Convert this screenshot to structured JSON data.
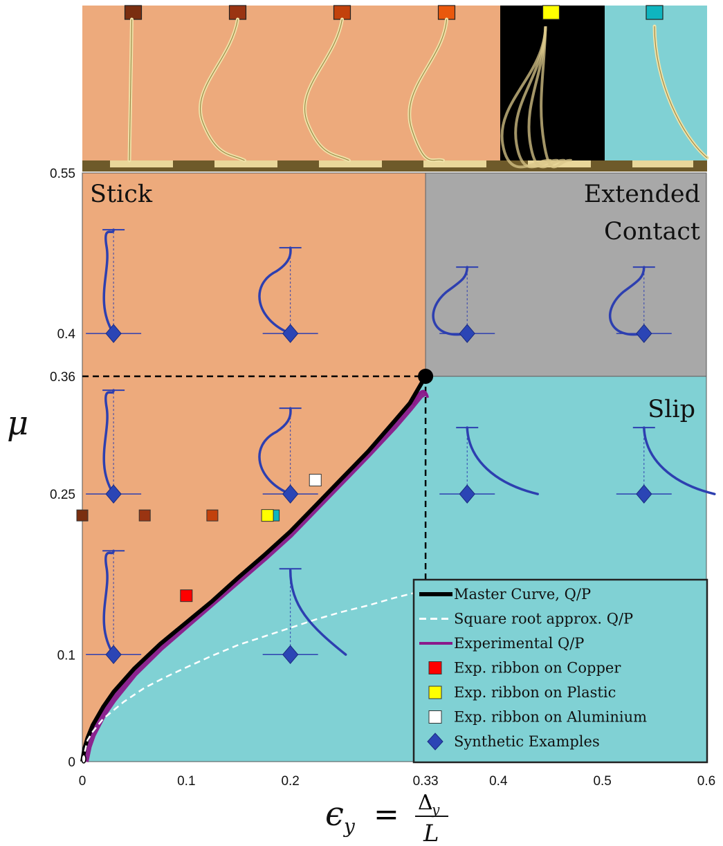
{
  "colors": {
    "stick": "#EDAA7C",
    "slip": "#80D1D4",
    "extended": "#A8A8A8",
    "strip_black": "#000000",
    "master": "#000000",
    "experimental": "#8B1A8B",
    "sqrt": "#FFFFFF",
    "ribbon_stroke": "#2D3FB0",
    "diamond": "#2B45B5"
  },
  "chart_data": {
    "type": "line",
    "xlim": [
      0,
      0.6
    ],
    "ylim": [
      0,
      0.55
    ],
    "x_ticks": [
      "0",
      "0.1",
      "0.2",
      "0.33",
      "0.4",
      "0.5",
      "0.6"
    ],
    "x_tick_values": [
      0,
      0.1,
      0.2,
      0.33,
      0.4,
      0.5,
      0.6
    ],
    "y_ticks": [
      "0",
      "0.1",
      "0.25",
      "0.36",
      "0.4",
      "0.55"
    ],
    "y_tick_values": [
      0,
      0.1,
      0.25,
      0.36,
      0.4,
      0.55
    ],
    "xlabel_lhs": "ϵ",
    "xlabel_sub": "y",
    "xlabel_eq": "=",
    "xlabel_num": "Δ",
    "xlabel_num_sub": "y",
    "xlabel_den": "L",
    "ylabel": "μ",
    "regions": [
      {
        "name": "Stick",
        "label_lines": [
          "Stick"
        ],
        "color_key": "stick"
      },
      {
        "name": "Extended Contact",
        "label_lines": [
          "Extended",
          "Contact"
        ],
        "color_key": "extended"
      },
      {
        "name": "Slip",
        "label_lines": [
          "Slip"
        ],
        "color_key": "slip"
      }
    ],
    "critical_point": {
      "x": 0.33,
      "y": 0.36
    },
    "series": [
      {
        "name": "Master Curve, Q/P",
        "style": "solid-thick",
        "color_key": "master",
        "points": [
          [
            0,
            0
          ],
          [
            0.002,
            0.012
          ],
          [
            0.005,
            0.022
          ],
          [
            0.01,
            0.034
          ],
          [
            0.02,
            0.051
          ],
          [
            0.03,
            0.065
          ],
          [
            0.05,
            0.087
          ],
          [
            0.075,
            0.11
          ],
          [
            0.1,
            0.13
          ],
          [
            0.125,
            0.15
          ],
          [
            0.15,
            0.172
          ],
          [
            0.175,
            0.193
          ],
          [
            0.2,
            0.215
          ],
          [
            0.225,
            0.24
          ],
          [
            0.25,
            0.265
          ],
          [
            0.275,
            0.29
          ],
          [
            0.3,
            0.318
          ],
          [
            0.315,
            0.335
          ],
          [
            0.33,
            0.36
          ]
        ]
      },
      {
        "name": "Square root approx. Q/P",
        "style": "dashed",
        "color_key": "sqrt",
        "points": [
          [
            0,
            0
          ],
          [
            0.005,
            0.02
          ],
          [
            0.01,
            0.028
          ],
          [
            0.02,
            0.04
          ],
          [
            0.04,
            0.056
          ],
          [
            0.06,
            0.069
          ],
          [
            0.08,
            0.079
          ],
          [
            0.1,
            0.088
          ],
          [
            0.125,
            0.099
          ],
          [
            0.15,
            0.109
          ],
          [
            0.175,
            0.117
          ],
          [
            0.2,
            0.125
          ],
          [
            0.225,
            0.133
          ],
          [
            0.25,
            0.14
          ],
          [
            0.275,
            0.146
          ],
          [
            0.3,
            0.153
          ],
          [
            0.325,
            0.159
          ],
          [
            0.33,
            0.16
          ]
        ]
      },
      {
        "name": "Experimental Q/P",
        "style": "solid",
        "color_key": "experimental",
        "points": [
          [
            0.003,
            0
          ],
          [
            0.006,
            0.014
          ],
          [
            0.01,
            0.025
          ],
          [
            0.02,
            0.044
          ],
          [
            0.03,
            0.058
          ],
          [
            0.05,
            0.082
          ],
          [
            0.075,
            0.106
          ],
          [
            0.1,
            0.127
          ],
          [
            0.125,
            0.148
          ],
          [
            0.15,
            0.169
          ],
          [
            0.175,
            0.19
          ],
          [
            0.2,
            0.212
          ],
          [
            0.225,
            0.237
          ],
          [
            0.25,
            0.262
          ],
          [
            0.275,
            0.287
          ],
          [
            0.3,
            0.313
          ],
          [
            0.315,
            0.33
          ],
          [
            0.325,
            0.342
          ],
          [
            0.33,
            0.345
          ]
        ]
      }
    ],
    "experimental_markers": [
      {
        "name": "Exp. ribbon on Copper",
        "x": 0.1,
        "y": 0.155,
        "color": "#FF0000"
      },
      {
        "name": "Exp. ribbon on Plastic",
        "x": 0.178,
        "y": 0.23,
        "color": "#FFFF00"
      },
      {
        "name": "Exp. ribbon on Aluminium",
        "x": 0.224,
        "y": 0.263,
        "color": "#FFFFFF"
      }
    ],
    "row_markers": [
      {
        "x": 0,
        "y": 0.23,
        "color": "#7A2E10"
      },
      {
        "x": 0.06,
        "y": 0.23,
        "color": "#9A3412"
      },
      {
        "x": 0.125,
        "y": 0.23,
        "color": "#C2410C"
      },
      {
        "x": 0.184,
        "y": 0.23,
        "color": "#0FB5BF"
      }
    ],
    "synthetic_examples": [
      {
        "x": 0.03,
        "y": 0.4,
        "shape": "stick-s"
      },
      {
        "x": 0.2,
        "y": 0.4,
        "shape": "stick-c"
      },
      {
        "x": 0.37,
        "y": 0.4,
        "shape": "ext-loop"
      },
      {
        "x": 0.54,
        "y": 0.4,
        "shape": "ext-loop"
      },
      {
        "x": 0.03,
        "y": 0.25,
        "shape": "stick-s"
      },
      {
        "x": 0.2,
        "y": 0.25,
        "shape": "stick-c"
      },
      {
        "x": 0.37,
        "y": 0.25,
        "shape": "slip-curl"
      },
      {
        "x": 0.54,
        "y": 0.25,
        "shape": "slip-curl"
      },
      {
        "x": 0.03,
        "y": 0.1,
        "shape": "stick-s"
      },
      {
        "x": 0.2,
        "y": 0.1,
        "shape": "slip-tail"
      }
    ],
    "legend": {
      "placement": "bottom-right",
      "entries": [
        {
          "label": "Master Curve, Q/P",
          "kind": "line-thick",
          "color_key": "master"
        },
        {
          "label": "Square root approx. Q/P",
          "kind": "line-dashed",
          "color_key": "sqrt"
        },
        {
          "label": "Experimental Q/P",
          "kind": "line",
          "color_key": "experimental"
        },
        {
          "label": "Exp. ribbon on Copper",
          "kind": "square",
          "color": "#FF0000"
        },
        {
          "label": "Exp. ribbon on Plastic",
          "kind": "square",
          "color": "#FFFF00"
        },
        {
          "label": "Exp. ribbon on Aluminium",
          "kind": "square",
          "color": "#FFFFFF"
        },
        {
          "label": "Synthetic Examples",
          "kind": "diamond",
          "color_key": "diamond"
        }
      ]
    },
    "photo_strip": [
      {
        "background": "stick",
        "marker": "#7A2E10",
        "ribbon": "straight"
      },
      {
        "background": "stick",
        "marker": "#9A3412",
        "ribbon": "s-curve"
      },
      {
        "background": "stick",
        "marker": "#C2410C",
        "ribbon": "s-curve"
      },
      {
        "background": "stick",
        "marker": "#EA580C",
        "ribbon": "c-curve"
      },
      {
        "background": "strip_black",
        "marker": "#FFFF00",
        "ribbon": "multi"
      },
      {
        "background": "slip",
        "marker": "#0FB5BF",
        "ribbon": "slip"
      }
    ]
  }
}
